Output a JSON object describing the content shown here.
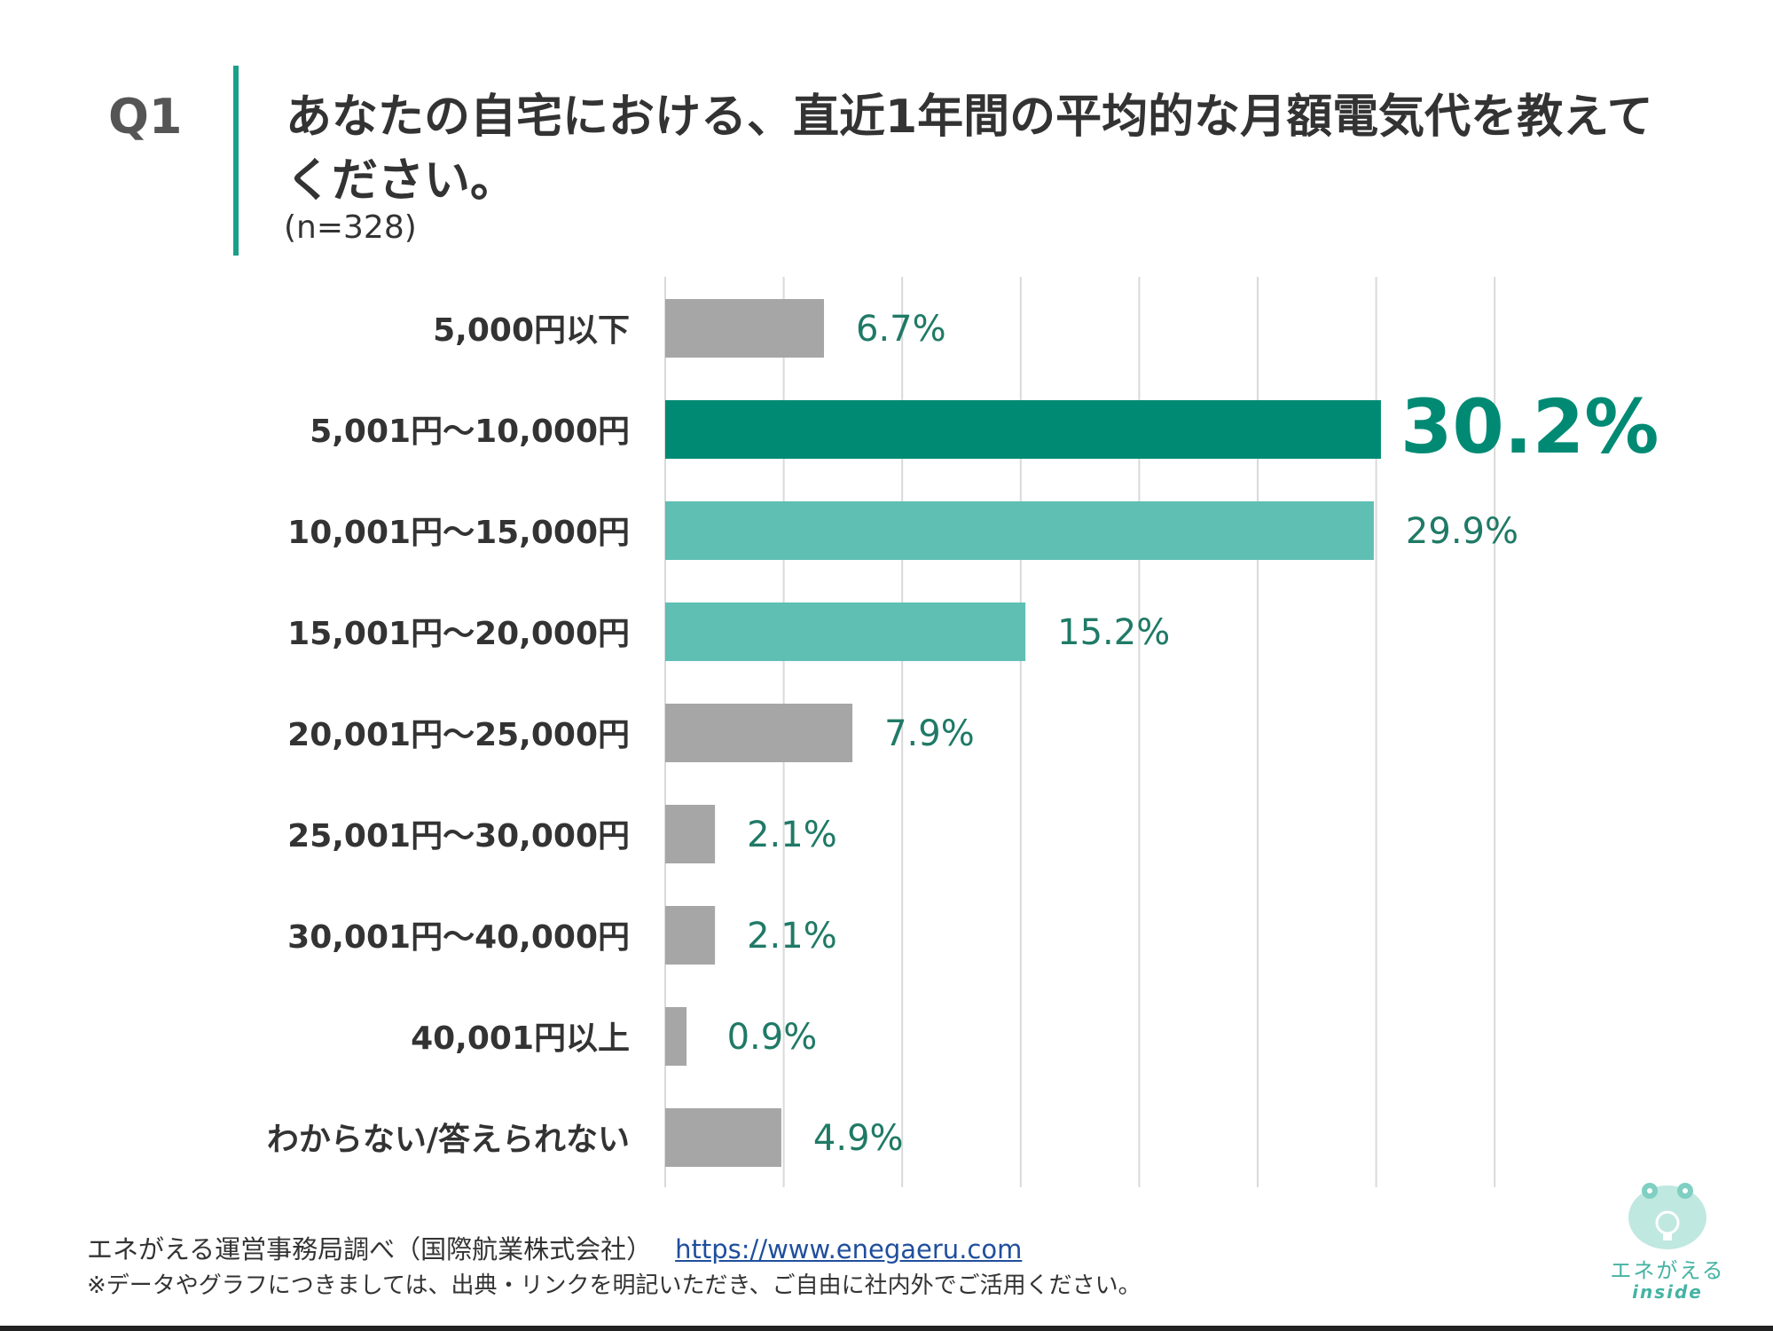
{
  "question": {
    "label": "Q1",
    "title": "あなたの自宅における、直近1年間の平均的な月額電気代を教えてください。",
    "sample": "(n=328)"
  },
  "chart_data": {
    "type": "bar",
    "orientation": "horizontal",
    "categories": [
      "5,000円以下",
      "5,001円～10,000円",
      "10,001円～15,000円",
      "15,001円～20,000円",
      "20,001円～25,000円",
      "25,001円～30,000円",
      "30,001円～40,000円",
      "40,001円以上",
      "わからない/答えられない"
    ],
    "values": [
      6.7,
      30.2,
      29.9,
      15.2,
      7.9,
      2.1,
      2.1,
      0.9,
      4.9
    ],
    "value_labels": [
      "6.7%",
      "30.2%",
      "29.9%",
      "15.2%",
      "7.9%",
      "2.1%",
      "2.1%",
      "0.9%",
      "4.9%"
    ],
    "xlim": [
      0,
      35
    ],
    "grid": true,
    "colors": {
      "top": "#008a74",
      "high": "#5fbfb3",
      "other": "#a6a6a6",
      "label": "#1f7a66"
    },
    "highlight": [
      1,
      2,
      3
    ]
  },
  "footer": {
    "source": "エネがえる運営事務局調べ（国際航業株式会社）",
    "link": "https://www.enegaeru.com",
    "note": "※データやグラフにつきましては、出典・リンクを明記いただき、ご自由に社内外でご活用ください。"
  },
  "logo": {
    "icon": "frog-bulb-icon",
    "name": "エネがえる",
    "sub": "inside"
  }
}
